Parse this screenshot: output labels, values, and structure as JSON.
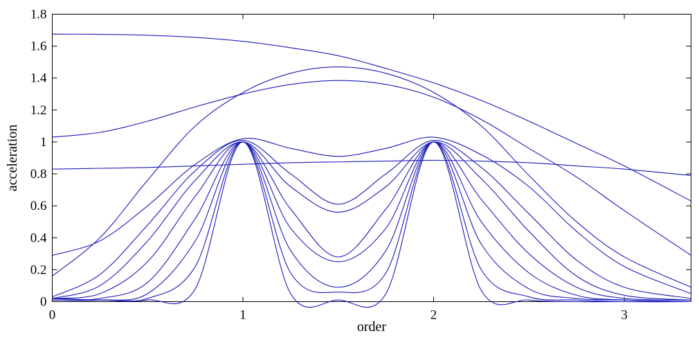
{
  "chart_data": {
    "type": "line",
    "title": "",
    "xlabel": "order",
    "ylabel": "acceleration",
    "xlim": [
      0,
      3.35
    ],
    "ylim": [
      0,
      1.8
    ],
    "xticks": [
      0,
      1,
      2,
      3
    ],
    "xtick_labels": [
      "0",
      "1",
      "2",
      "3"
    ],
    "yticks": [
      0,
      0.2,
      0.4,
      0.6,
      0.8,
      1,
      1.2,
      1.4,
      1.6,
      1.8
    ],
    "ytick_labels": [
      "0",
      "0.2",
      "0.4",
      "0.6",
      "0.8",
      "1",
      "1.2",
      "1.4",
      "1.6",
      "1.8"
    ],
    "grid": false,
    "legend": "none",
    "line_color": "#1a1ab8",
    "series": [
      {
        "x": [
          0,
          0.25,
          0.5,
          0.75,
          1,
          1.25,
          1.5,
          1.75,
          2,
          2.25,
          2.5,
          2.75,
          3,
          3.35
        ],
        "y": [
          1.675,
          1.674,
          1.668,
          1.655,
          1.63,
          1.59,
          1.54,
          1.46,
          1.37,
          1.26,
          1.13,
          0.99,
          0.85,
          0.63
        ]
      },
      {
        "x": [
          0,
          0.25,
          0.5,
          0.75,
          1,
          1.25,
          1.5,
          1.75,
          2,
          2.25,
          2.5,
          2.75,
          3,
          3.35
        ],
        "y": [
          1.03,
          1.06,
          1.13,
          1.22,
          1.3,
          1.36,
          1.385,
          1.36,
          1.28,
          1.14,
          0.96,
          0.78,
          0.57,
          0.29
        ]
      },
      {
        "x": [
          0,
          0.25,
          0.5,
          0.75,
          1,
          1.25,
          1.5,
          1.75,
          2,
          2.25,
          2.5,
          2.75,
          3,
          3.35
        ],
        "y": [
          0.83,
          0.835,
          0.84,
          0.85,
          0.86,
          0.87,
          0.875,
          0.88,
          0.885,
          0.88,
          0.87,
          0.85,
          0.83,
          0.79
        ]
      },
      {
        "x": [
          0,
          0.25,
          0.5,
          0.75,
          1,
          1.25,
          1.5,
          1.75,
          2,
          2.25,
          2.5,
          2.75,
          3,
          3.35
        ],
        "y": [
          0.16,
          0.4,
          0.76,
          1.1,
          1.31,
          1.43,
          1.47,
          1.43,
          1.31,
          1.1,
          0.79,
          0.5,
          0.28,
          0.09
        ]
      },
      {
        "x": [
          0,
          0.25,
          0.5,
          0.75,
          1,
          1.25,
          1.5,
          1.75,
          2,
          2.25,
          2.5,
          2.75,
          3,
          3.35
        ],
        "y": [
          0.29,
          0.38,
          0.6,
          0.86,
          1.02,
          0.96,
          0.91,
          0.96,
          1.03,
          0.92,
          0.72,
          0.44,
          0.22,
          0.05
        ]
      },
      {
        "x": [
          0,
          0.25,
          0.5,
          0.75,
          1,
          1.25,
          1.5,
          1.75,
          2,
          2.25,
          2.5,
          2.75,
          3,
          3.35
        ],
        "y": [
          0.03,
          0.17,
          0.48,
          0.82,
          1.01,
          0.8,
          0.61,
          0.8,
          1.01,
          0.84,
          0.55,
          0.26,
          0.09,
          0.02
        ]
      },
      {
        "x": [
          0,
          0.25,
          0.5,
          0.75,
          1,
          1.25,
          1.5,
          1.75,
          2,
          2.25,
          2.5,
          2.75,
          3,
          3.35
        ],
        "y": [
          0.02,
          0.1,
          0.38,
          0.76,
          1.0,
          0.72,
          0.56,
          0.72,
          1.0,
          0.77,
          0.44,
          0.16,
          0.04,
          0.01
        ]
      },
      {
        "x": [
          0,
          0.25,
          0.5,
          0.75,
          1,
          1.25,
          1.5,
          1.75,
          2,
          2.25,
          2.5,
          2.75,
          3,
          3.35
        ],
        "y": [
          0.02,
          0.05,
          0.25,
          0.66,
          1.0,
          0.58,
          0.28,
          0.58,
          1.0,
          0.64,
          0.3,
          0.09,
          0.02,
          0.01
        ]
      },
      {
        "x": [
          0,
          0.25,
          0.5,
          0.75,
          1,
          1.25,
          1.5,
          1.75,
          2,
          2.25,
          2.5,
          2.75,
          3,
          3.35
        ],
        "y": [
          0.01,
          0.02,
          0.12,
          0.52,
          1.0,
          0.46,
          0.25,
          0.46,
          1.0,
          0.5,
          0.18,
          0.04,
          0.01,
          0.0
        ]
      },
      {
        "x": [
          0,
          0.25,
          0.5,
          0.75,
          1,
          1.25,
          1.5,
          1.75,
          2,
          2.25,
          2.5,
          2.75,
          3,
          3.35
        ],
        "y": [
          0.01,
          0.01,
          0.05,
          0.38,
          1.0,
          0.32,
          0.09,
          0.32,
          1.0,
          0.36,
          0.08,
          0.02,
          0.01,
          0.0
        ]
      },
      {
        "x": [
          0,
          0.25,
          0.5,
          0.75,
          1,
          1.25,
          1.5,
          1.75,
          2,
          2.25,
          2.5,
          2.75,
          3,
          3.35
        ],
        "y": [
          0.01,
          0.01,
          0.02,
          0.22,
          1.0,
          0.18,
          0.06,
          0.18,
          1.0,
          0.2,
          0.03,
          0.01,
          0.0,
          0.0
        ]
      },
      {
        "x": [
          0,
          0.25,
          0.5,
          0.75,
          1,
          1.25,
          1.5,
          1.75,
          2,
          2.25,
          2.5,
          2.75,
          3,
          3.35
        ],
        "y": [
          0.02,
          0.01,
          0.01,
          0.08,
          1.0,
          0.05,
          0.01,
          0.05,
          1.0,
          0.07,
          0.01,
          0.0,
          0.0,
          0.0
        ]
      }
    ]
  }
}
